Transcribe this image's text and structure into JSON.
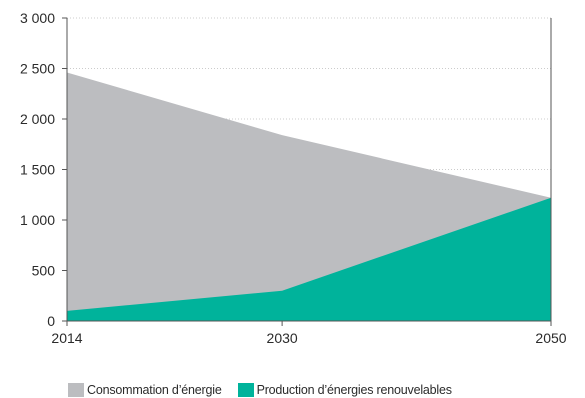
{
  "chart_data": {
    "type": "area",
    "x": [
      2014,
      2030,
      2050
    ],
    "series": [
      {
        "name": "Consommation d’énergie",
        "values": [
          2460,
          1840,
          1220
        ],
        "color": "#bcbdc0"
      },
      {
        "name": "Production d’énergies renouvelables",
        "values": [
          100,
          300,
          1220
        ],
        "color": "#00b39b"
      }
    ],
    "xlim": [
      2014,
      2050
    ],
    "ylim": [
      0,
      3000
    ],
    "x_ticks": [
      2014,
      2030,
      2050
    ],
    "x_tick_labels": [
      "2014",
      "2030",
      "2050"
    ],
    "y_ticks": [
      0,
      500,
      1000,
      1500,
      2000,
      2500,
      3000
    ],
    "y_tick_labels": [
      "0",
      "500",
      "1 000",
      "1 500",
      "2 000",
      "2 500",
      "3 000"
    ],
    "grid": "horizontal dotted",
    "legend_position": "bottom-left",
    "title": "",
    "xlabel": "",
    "ylabel": ""
  }
}
